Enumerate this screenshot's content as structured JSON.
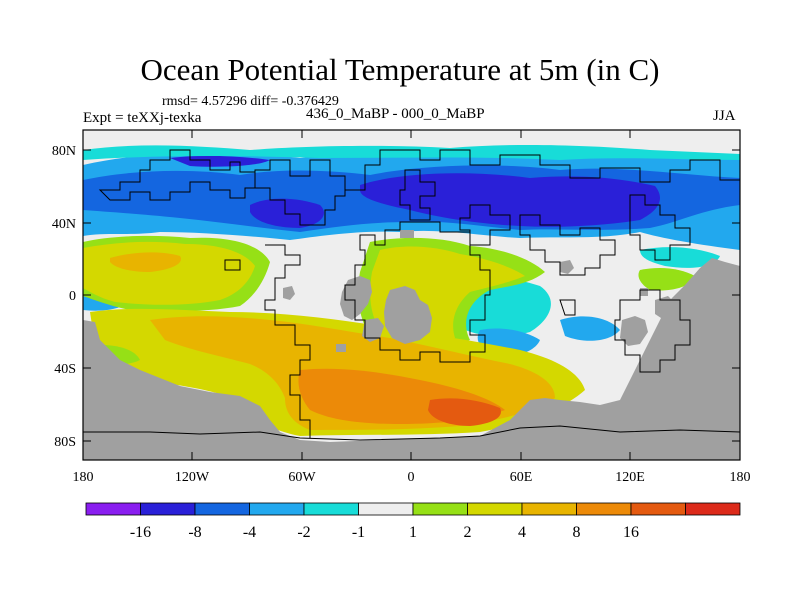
{
  "title": "Ocean Potential Temperature at 5m (in C)",
  "stats": "rmsd= 4.57296 diff= -0.376429",
  "experiment": "Expt = teXXj-texka",
  "subtitle": "436_0_MaBP - 000_0_MaBP",
  "season": "JJA",
  "map": {
    "lat_ticks": [
      "80N",
      "40N",
      "0",
      "40S",
      "80S"
    ],
    "lon_ticks": [
      "180",
      "120W",
      "60W",
      "0",
      "60E",
      "120E",
      "180"
    ],
    "land_color": "#a0a0a0"
  },
  "colorbar": {
    "colors": [
      "#8a1ef0",
      "#2a20d8",
      "#1466e0",
      "#22a8ee",
      "#18dcd8",
      "#eeeeee",
      "#96e016",
      "#d4d800",
      "#e8b400",
      "#ec8a08",
      "#e45a10",
      "#dc2a1a"
    ],
    "labels": [
      "-16",
      "-8",
      "-4",
      "-2",
      "-1",
      "1",
      "2",
      "4",
      "8",
      "16"
    ]
  }
}
